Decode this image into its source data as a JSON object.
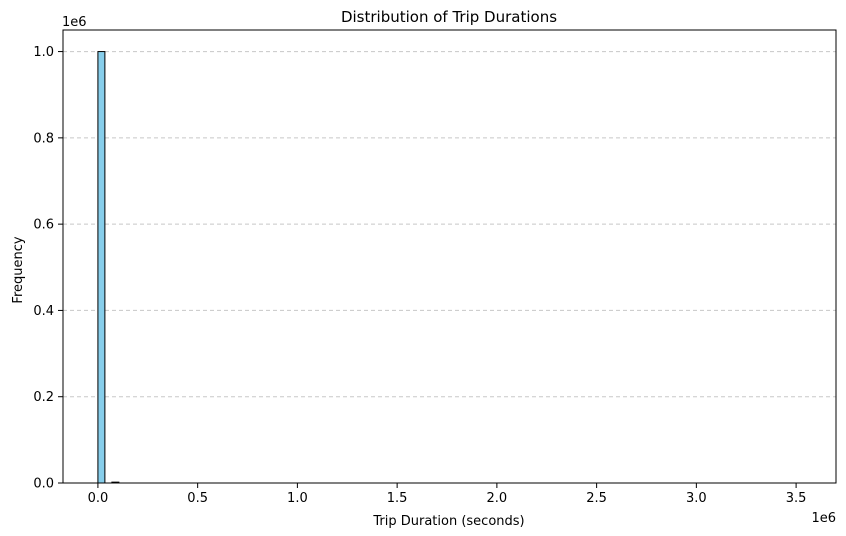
{
  "chart_data": {
    "type": "bar",
    "title": "Distribution of Trip Durations",
    "xlabel": "Trip Duration (seconds)",
    "ylabel": "Frequency",
    "x_offset_label": "1e6",
    "y_offset_label": "1e6",
    "xlim": [
      -175000,
      3700000
    ],
    "ylim": [
      0,
      1050000
    ],
    "x_ticks": [
      {
        "value": 0,
        "label": "0.0"
      },
      {
        "value": 500000,
        "label": "0.5"
      },
      {
        "value": 1000000,
        "label": "1.0"
      },
      {
        "value": 1500000,
        "label": "1.5"
      },
      {
        "value": 2000000,
        "label": "2.0"
      },
      {
        "value": 2500000,
        "label": "2.5"
      },
      {
        "value": 3000000,
        "label": "3.0"
      },
      {
        "value": 3500000,
        "label": "3.5"
      }
    ],
    "y_ticks": [
      {
        "value": 0,
        "label": "0.0"
      },
      {
        "value": 200000,
        "label": "0.2"
      },
      {
        "value": 400000,
        "label": "0.4"
      },
      {
        "value": 600000,
        "label": "0.6"
      },
      {
        "value": 800000,
        "label": "0.8"
      },
      {
        "value": 1000000,
        "label": "1.0"
      }
    ],
    "bin_width": 35000,
    "bins": [
      {
        "start": 0,
        "count": 1000000
      },
      {
        "start": 70000,
        "count": 2000
      }
    ],
    "bar_color": "#87CEEB",
    "edge_color": "#000000",
    "grid": {
      "axis": "y",
      "style": "dashed",
      "color": "#c8c8c8"
    }
  }
}
